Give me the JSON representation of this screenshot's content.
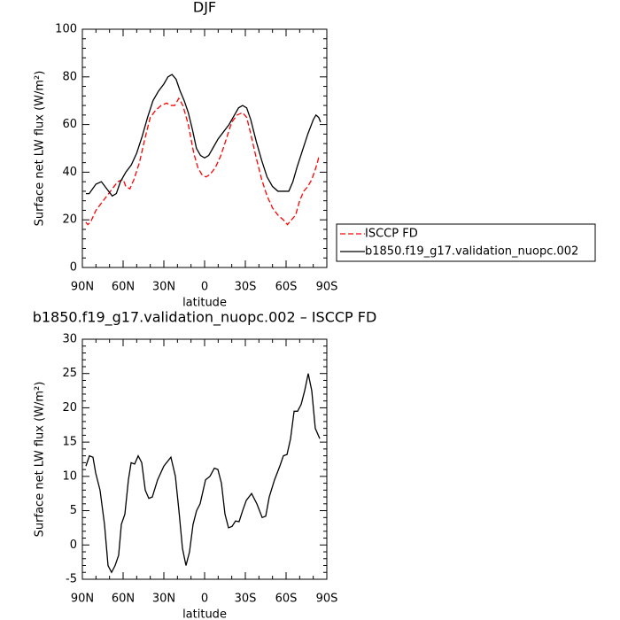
{
  "chart_data": [
    {
      "type": "line",
      "title": "DJF",
      "xlabel": "latitude",
      "ylabel": "Surface net LW flux (W/m²)",
      "xlim": [
        90,
        -90
      ],
      "ylim": [
        0,
        100
      ],
      "xticks": [
        {
          "value": 90,
          "label": "90N"
        },
        {
          "value": 60,
          "label": "60N"
        },
        {
          "value": 30,
          "label": "30N"
        },
        0,
        {
          "value": -30,
          "label": "30S"
        },
        {
          "value": -60,
          "label": "60S"
        },
        {
          "value": -90,
          "label": "90S"
        }
      ],
      "yticks": [
        0,
        20,
        40,
        60,
        80,
        100
      ],
      "legend": "right",
      "series": [
        {
          "name": "ISCCP FD",
          "color": "#ff0000",
          "line_style": "dashed",
          "x": [
            87.4,
            86,
            84,
            80,
            76,
            72,
            68,
            64,
            60,
            58,
            55,
            52,
            48,
            44,
            40,
            36,
            32,
            28,
            25,
            22,
            19,
            16,
            12,
            8,
            5,
            2,
            -1,
            -4,
            -8,
            -12,
            -16,
            -20,
            -24,
            -28,
            -31,
            -34,
            -38,
            -42,
            -46,
            -50,
            -54,
            -58,
            -61,
            -64,
            -67,
            -70,
            -73,
            -76,
            -79,
            -82,
            -84,
            -85.5
          ],
          "values": [
            19,
            18,
            19,
            24,
            27,
            30,
            33,
            36,
            37,
            34,
            33,
            37,
            44,
            54,
            63,
            66,
            68,
            69,
            68,
            68,
            71,
            68,
            60,
            48,
            42,
            39,
            38,
            39,
            42,
            47,
            54,
            61,
            64,
            65,
            63,
            56,
            46,
            37,
            30,
            25,
            22,
            20,
            18,
            20,
            22,
            28,
            32,
            34,
            37,
            42,
            46,
            46
          ]
        },
        {
          "name": "b1850.f19_g17.validation_nuopc.002",
          "color": "#000000",
          "line_style": "solid",
          "x": [
            87.4,
            85,
            80,
            76,
            72,
            68,
            65,
            62,
            58,
            54,
            50,
            46,
            42,
            38,
            34,
            30,
            27,
            24,
            21,
            18,
            15,
            12,
            9,
            6,
            3,
            0,
            -3,
            -6,
            -10,
            -14,
            -18,
            -22,
            -25,
            -28,
            -31,
            -34,
            -38,
            -42,
            -46,
            -50,
            -54,
            -58,
            -62,
            -65,
            -68,
            -72,
            -76,
            -80,
            -82,
            -84,
            -85.4
          ],
          "values": [
            31,
            31,
            35,
            36,
            33,
            30,
            31,
            36,
            40,
            43,
            48,
            55,
            63,
            70,
            74,
            77,
            80,
            81,
            79,
            74,
            70,
            65,
            58,
            50,
            47,
            46,
            47,
            50,
            54,
            57,
            60,
            64,
            67,
            68,
            67,
            62,
            53,
            45,
            38,
            34,
            32,
            32,
            32,
            36,
            42,
            49,
            56,
            62,
            64,
            63,
            61
          ]
        }
      ]
    },
    {
      "type": "line",
      "title": "b1850.f19_g17.validation_nuopc.002 – ISCCP FD",
      "xlabel": "latitude",
      "ylabel": "Surface net LW flux (W/m²)",
      "xlim": [
        90,
        -90
      ],
      "ylim": [
        -5,
        30
      ],
      "xticks": [
        {
          "value": 90,
          "label": "90N"
        },
        {
          "value": 60,
          "label": "60N"
        },
        {
          "value": 30,
          "label": "30N"
        },
        0,
        {
          "value": -30,
          "label": "30S"
        },
        {
          "value": -60,
          "label": "60S"
        },
        {
          "value": -90,
          "label": "90S"
        }
      ],
      "yticks": [
        -5,
        0,
        5,
        10,
        15,
        20,
        25,
        30
      ],
      "series": [
        {
          "color": "#000000",
          "line_style": "solid",
          "x": [
            87.4,
            84.8,
            82.2,
            80.2,
            77,
            73.7,
            71.1,
            68.5,
            65.9,
            63.3,
            61.3,
            58.7,
            56.1,
            54.1,
            51.5,
            48.9,
            46.3,
            43.7,
            41.1,
            38.5,
            34.6,
            30,
            24.8,
            21.5,
            18.9,
            16.3,
            13.7,
            11.1,
            8.5,
            5.9,
            3.3,
            -0.7,
            -3.9,
            -7.2,
            -9.8,
            -12.4,
            -15,
            -17.6,
            -20.2,
            -22.8,
            -25.4,
            -28,
            -30.7,
            -34.6,
            -38.5,
            -42.4,
            -45,
            -47.6,
            -51.5,
            -55.4,
            -58,
            -60.7,
            -63.3,
            -65.9,
            -68.5,
            -71.1,
            -73.7,
            -76.3,
            -78.9,
            -81.5,
            -84.8
          ],
          "values": [
            11.5,
            13,
            12.8,
            10.5,
            8,
            3,
            -3,
            -4,
            -3,
            -1.5,
            3,
            4.5,
            9.5,
            12,
            11.8,
            13,
            12,
            8,
            6.8,
            7,
            9.5,
            11.5,
            12.8,
            10,
            5,
            -0.5,
            -3,
            -1,
            3,
            5,
            6,
            9.5,
            10,
            11.2,
            11,
            9,
            4.5,
            2.5,
            2.7,
            3.5,
            3.4,
            5,
            6.5,
            7.5,
            6,
            4,
            4.2,
            7,
            9.5,
            11.5,
            13,
            13.2,
            15.5,
            19.5,
            19.5,
            20.5,
            22.5,
            25,
            22.5,
            17,
            15.5
          ]
        }
      ]
    }
  ]
}
